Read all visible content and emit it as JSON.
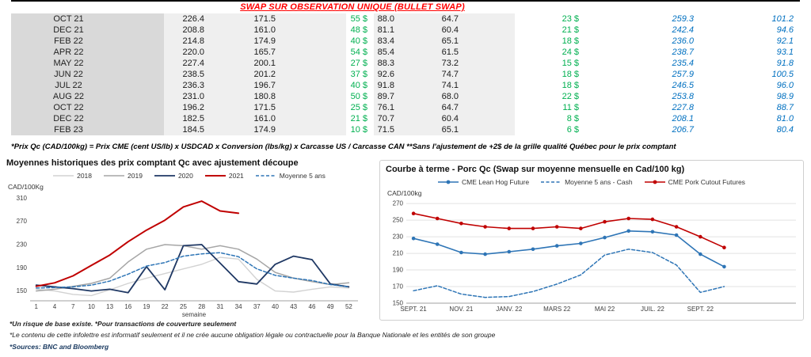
{
  "page": {
    "title": "SWAP SUR OBSERVATION UNIQUE (BULLET SWAP)",
    "table_footnote": "*Prix Qc (CAD/100kg) = Prix CME (cent US/lb) x USDCAD x Conversion (lbs/kg) x Carcasse US / Carcasse CAN **Sans l'ajustement de +2$ de la grille qualité Québec pour le prix comptant",
    "footnotes": [
      "*Un risque de base existe. *Pour transactions de couverture seulement",
      "*Le contenu de cette infolettre est informatif seulement et il ne crée aucune obligation légale ou contractuelle pour la Banque Nationale et les entités de son groupe",
      "*Sources: BNC and Bloomberg"
    ],
    "colors": {
      "title_red": "#ff0000",
      "gain_green": "#00b050",
      "futures_blue": "#0070c0",
      "month_column_bg": "#d9d9d9",
      "value_band_bg": "#efefef"
    }
  },
  "swap_table": {
    "rows": [
      [
        "OCT 21",
        "226.4",
        "171.5",
        "55 $",
        "88.0",
        "64.7",
        "23 $",
        "259.3",
        "101.2"
      ],
      [
        "DEC 21",
        "208.8",
        "161.0",
        "48 $",
        "81.1",
        "60.4",
        "21 $",
        "242.4",
        "94.6"
      ],
      [
        "FEB 22",
        "214.8",
        "174.9",
        "40 $",
        "83.4",
        "65.1",
        "18 $",
        "236.0",
        "92.1"
      ],
      [
        "APR 22",
        "220.0",
        "165.7",
        "54 $",
        "85.4",
        "61.5",
        "24 $",
        "238.7",
        "93.1"
      ],
      [
        "MAY 22",
        "227.4",
        "200.1",
        "27 $",
        "88.3",
        "73.2",
        "15 $",
        "235.4",
        "91.8"
      ],
      [
        "JUN 22",
        "238.5",
        "201.2",
        "37 $",
        "92.6",
        "74.7",
        "18 $",
        "257.9",
        "100.5"
      ],
      [
        "JUL 22",
        "236.3",
        "196.7",
        "40 $",
        "91.8",
        "74.1",
        "18 $",
        "246.5",
        "96.0"
      ],
      [
        "AUG 22",
        "231.0",
        "180.8",
        "50 $",
        "89.7",
        "68.0",
        "22 $",
        "253.8",
        "98.9"
      ],
      [
        "OCT 22",
        "196.2",
        "171.5",
        "25 $",
        "76.1",
        "64.7",
        "11 $",
        "227.8",
        "88.7"
      ],
      [
        "DEC 22",
        "182.5",
        "161.0",
        "21 $",
        "70.7",
        "60.4",
        "8 $",
        "208.1",
        "81.0"
      ],
      [
        "FEB 23",
        "184.5",
        "174.9",
        "10 $",
        "71.5",
        "65.1",
        "6 $",
        "206.7",
        "80.4"
      ]
    ]
  },
  "chart_data": [
    {
      "type": "line",
      "title": "Moyennes historiques des prix comptant Qc avec ajustement découpe",
      "ylabel": "CAD/100Kg",
      "xlabel": "semaine",
      "ylim": [
        133,
        316
      ],
      "yticks": [
        150,
        190,
        230,
        270,
        310
      ],
      "xrange": [
        0,
        53.5
      ],
      "grid": false,
      "legend_position": "top",
      "x": [
        1,
        4,
        7,
        10,
        13,
        16,
        19,
        22,
        25,
        28,
        31,
        34,
        37,
        40,
        43,
        46,
        49,
        52
      ],
      "xticks": [
        1,
        4,
        7,
        10,
        13,
        16,
        19,
        22,
        25,
        28,
        31,
        34,
        37,
        40,
        43,
        46,
        49,
        52
      ],
      "series": [
        {
          "name": "2018",
          "color": "#d2d2d2",
          "lw": 1.4,
          "values": [
            153,
            150,
            144,
            142,
            152,
            163,
            172,
            180,
            188,
            196,
            208,
            205,
            170,
            150,
            148,
            153,
            157,
            155
          ]
        },
        {
          "name": "2019",
          "color": "#a6a6a6",
          "lw": 1.5,
          "values": [
            150,
            153,
            158,
            163,
            172,
            200,
            222,
            230,
            228,
            222,
            228,
            222,
            205,
            182,
            172,
            166,
            161,
            164
          ]
        },
        {
          "name": "2020",
          "color": "#1f3864",
          "lw": 1.8,
          "values": [
            160,
            157,
            154,
            150,
            153,
            147,
            192,
            152,
            228,
            230,
            198,
            166,
            162,
            196,
            210,
            204,
            162,
            157
          ]
        },
        {
          "name": "2021",
          "color": "#c00000",
          "lw": 2,
          "values": [
            158,
            164,
            176,
            194,
            212,
            235,
            255,
            272,
            295,
            305,
            288,
            284,
            null,
            null,
            null,
            null,
            null,
            null
          ]
        },
        {
          "name": "Moyenne 5 ans",
          "color": "#2e75b6",
          "lw": 1.5,
          "dash": "4 2.5",
          "values": [
            155,
            156,
            157,
            160,
            167,
            179,
            193,
            199,
            210,
            214,
            216,
            209,
            188,
            177,
            172,
            168,
            161,
            157
          ]
        }
      ]
    },
    {
      "type": "line",
      "title": "Courbe à terme - Porc Qc (Swap sur moyenne mensuelle en Cad/100 kg)",
      "ylabel": "CAD/100kg",
      "xlabel": "",
      "ylim": [
        150,
        273
      ],
      "yticks": [
        150,
        170,
        190,
        210,
        230,
        250,
        270
      ],
      "xrange": [
        -0.3,
        16
      ],
      "grid": true,
      "legend_position": "top",
      "x": [
        0,
        1,
        2,
        3,
        4,
        5,
        6,
        7,
        8,
        9,
        10,
        11,
        12,
        13
      ],
      "xticks": [
        {
          "x": 0,
          "label": "SEPT. 21"
        },
        {
          "x": 2,
          "label": "NOV. 21"
        },
        {
          "x": 4,
          "label": "JANV. 22"
        },
        {
          "x": 6,
          "label": "MARS 22"
        },
        {
          "x": 8,
          "label": "MAI 22"
        },
        {
          "x": 10,
          "label": "JUIL. 22"
        },
        {
          "x": 12,
          "label": "SEPT. 22"
        }
      ],
      "series": [
        {
          "name": "CME Lean Hog Future",
          "color": "#2e75b6",
          "lw": 1.6,
          "markers": true,
          "values": [
            228,
            221,
            211,
            209,
            212,
            215,
            219,
            222,
            229,
            237,
            236,
            232,
            209,
            194
          ]
        },
        {
          "name": "Moyenne 5 ans - Cash",
          "color": "#2e75b6",
          "lw": 1.5,
          "dash": "4 2.5",
          "values": [
            165,
            171,
            161,
            157,
            158,
            164,
            173,
            184,
            208,
            215,
            211,
            196,
            163,
            170
          ]
        },
        {
          "name": "CME Pork Cutout Futures",
          "color": "#c00000",
          "lw": 1.6,
          "markers": true,
          "values": [
            258,
            252,
            246,
            242,
            240,
            240,
            242,
            240,
            248,
            252,
            251,
            242,
            230,
            217
          ]
        }
      ]
    }
  ]
}
